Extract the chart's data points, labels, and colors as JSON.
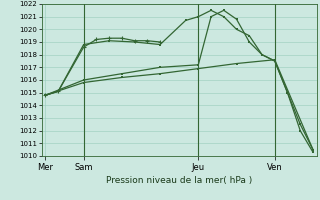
{
  "xlabel": "Pression niveau de la mer( hPa )",
  "ylim": [
    1010,
    1022
  ],
  "xtick_labels": [
    "Mer",
    "Sam",
    "Jeu",
    "Ven"
  ],
  "xtick_pos": [
    0,
    3,
    12,
    18
  ],
  "background_color": "#cce8e0",
  "grid_color": "#99ccbb",
  "line_color": "#336633",
  "xlim": [
    -0.3,
    21.3
  ],
  "series1_x": [
    0,
    1,
    3,
    4,
    5,
    6,
    7,
    8,
    9
  ],
  "series1_y": [
    1014.8,
    1015.1,
    1018.6,
    1019.2,
    1019.3,
    1019.3,
    1019.1,
    1019.1,
    1019.0
  ],
  "series2_x": [
    0,
    1,
    3,
    5,
    7,
    9,
    11,
    12,
    13,
    14,
    15,
    16,
    17,
    18,
    19,
    20,
    21
  ],
  "series2_y": [
    1014.8,
    1015.1,
    1018.8,
    1019.1,
    1019.0,
    1018.8,
    1020.7,
    1021.0,
    1021.5,
    1021.0,
    1020.0,
    1019.5,
    1018.0,
    1017.5,
    1015.0,
    1012.5,
    1010.5
  ],
  "series3_x": [
    0,
    3,
    6,
    9,
    12,
    13,
    14,
    15,
    16,
    17,
    18,
    19,
    20,
    21
  ],
  "series3_y": [
    1014.8,
    1016.0,
    1016.5,
    1017.0,
    1017.2,
    1021.0,
    1021.5,
    1020.8,
    1019.0,
    1018.0,
    1017.5,
    1015.0,
    1012.0,
    1010.3
  ],
  "series4_x": [
    0,
    3,
    6,
    9,
    12,
    15,
    18,
    21
  ],
  "series4_y": [
    1014.8,
    1015.8,
    1016.2,
    1016.5,
    1016.9,
    1017.3,
    1017.6,
    1010.5
  ],
  "vline_pos": [
    3,
    12,
    18
  ]
}
